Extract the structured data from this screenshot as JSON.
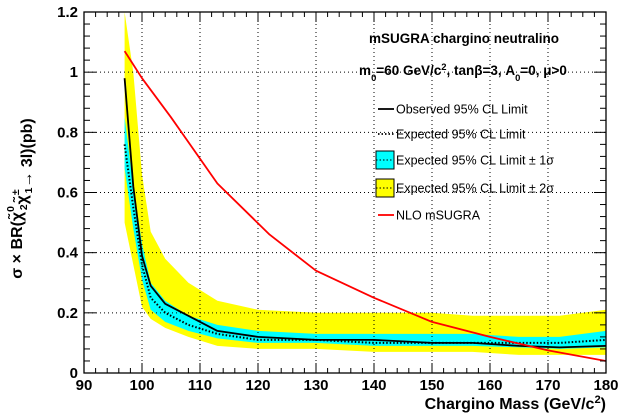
{
  "chart_data": {
    "type": "line",
    "title": "mSUGRA chargino neutralino",
    "subtitle": {
      "parts": [
        {
          "t": "m"
        },
        {
          "t": "0",
          "sub": true
        },
        {
          "t": "=60 GeV/c"
        },
        {
          "t": "2",
          "sup": true
        },
        {
          "t": ", tanβ=3, A"
        },
        {
          "t": "0",
          "sub": true
        },
        {
          "t": "=0, μ>0"
        }
      ]
    },
    "xlabel": {
      "parts": [
        {
          "t": "Chargino Mass (GeV/c"
        },
        {
          "t": "2",
          "sup": true
        },
        {
          "t": ")"
        }
      ]
    },
    "ylabel": {
      "parts": [
        {
          "t": "σ × BR("
        },
        {
          "t": "χ̃",
          "stack": [
            "0",
            "2"
          ]
        },
        {
          "t": "χ̃",
          "stack": [
            "±",
            "1"
          ]
        },
        {
          "t": "→ 3l)(pb)"
        }
      ]
    },
    "xlim": [
      90,
      180
    ],
    "ylim": [
      0,
      1.2
    ],
    "xticks": [
      90,
      100,
      110,
      120,
      130,
      140,
      150,
      160,
      170,
      180
    ],
    "yticks": [
      0,
      0.2,
      0.4,
      0.6,
      0.8,
      1,
      1.2
    ],
    "ytick_labels": [
      "0",
      "0.2",
      "0.4",
      "0.6",
      "0.8",
      "1",
      "1.2"
    ],
    "grid": true,
    "legend_position": "right",
    "x": [
      97,
      98.5,
      100,
      101.5,
      104,
      108,
      113,
      120,
      130,
      140,
      150,
      157,
      165,
      172,
      180
    ],
    "band_2sigma": {
      "label": "Expected 95% CL Limit ± 2σ",
      "color": "#ffff00",
      "upper": [
        1.2,
        1.0,
        0.66,
        0.47,
        0.38,
        0.3,
        0.24,
        0.21,
        0.2,
        0.2,
        0.2,
        0.19,
        0.19,
        0.19,
        0.21
      ],
      "lower": [
        0.5,
        0.36,
        0.22,
        0.18,
        0.15,
        0.12,
        0.09,
        0.08,
        0.08,
        0.07,
        0.07,
        0.07,
        0.06,
        0.06,
        0.06
      ]
    },
    "band_1sigma": {
      "label": "Expected 95% CL Limit ± 1σ",
      "color": "#00ffff",
      "upper": [
        0.85,
        0.62,
        0.43,
        0.3,
        0.24,
        0.19,
        0.16,
        0.14,
        0.13,
        0.13,
        0.13,
        0.13,
        0.12,
        0.12,
        0.14
      ],
      "lower": [
        0.68,
        0.48,
        0.31,
        0.21,
        0.17,
        0.14,
        0.115,
        0.1,
        0.1,
        0.09,
        0.09,
        0.09,
        0.085,
        0.08,
        0.085
      ]
    },
    "series": [
      {
        "name": "Observed 95% CL Limit",
        "style": "solid",
        "color": "#000000",
        "values": [
          0.98,
          0.62,
          0.39,
          0.29,
          0.23,
          0.19,
          0.14,
          0.12,
          0.11,
          0.11,
          0.1,
          0.1,
          0.09,
          0.085,
          0.09
        ]
      },
      {
        "name": "Expected 95% CL Limit",
        "style": "dotted",
        "color": "#000000",
        "values": [
          0.76,
          0.55,
          0.36,
          0.25,
          0.2,
          0.16,
          0.13,
          0.11,
          0.11,
          0.1,
          0.1,
          0.1,
          0.1,
          0.1,
          0.11
        ]
      },
      {
        "name": "NLO mSUGRA",
        "style": "solid",
        "color": "#ff0000",
        "x": [
          97,
          100,
          105,
          113,
          122,
          130,
          140,
          150,
          160,
          170,
          180
        ],
        "values": [
          1.07,
          0.98,
          0.85,
          0.63,
          0.46,
          0.34,
          0.25,
          0.17,
          0.12,
          0.075,
          0.04
        ]
      }
    ]
  }
}
